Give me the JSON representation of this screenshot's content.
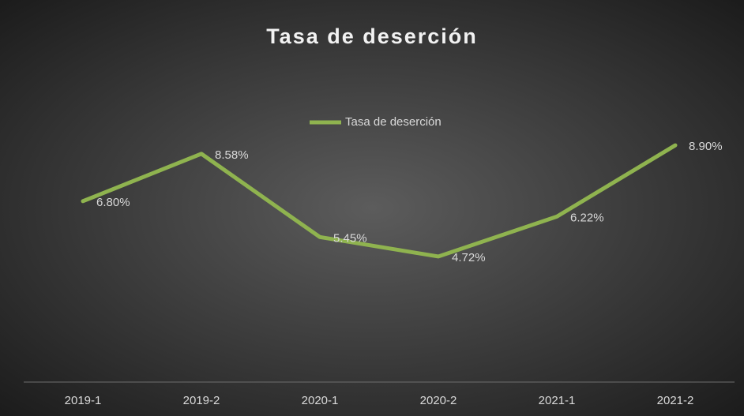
{
  "chart_data": {
    "type": "line",
    "title": "Tasa de deserción",
    "categories": [
      "2019-1",
      "2019-2",
      "2020-1",
      "2020-2",
      "2021-1",
      "2021-2"
    ],
    "series": [
      {
        "name": "Tasa de deserción",
        "color": "#8fb34f",
        "values": [
          6.8,
          8.58,
          5.45,
          4.72,
          6.22,
          8.9
        ],
        "value_labels": [
          "6.80%",
          "8.58%",
          "5.45%",
          "4.72%",
          "6.22%",
          "8.90%"
        ]
      }
    ],
    "ylim": [
      0,
      10
    ],
    "legend": "top"
  }
}
